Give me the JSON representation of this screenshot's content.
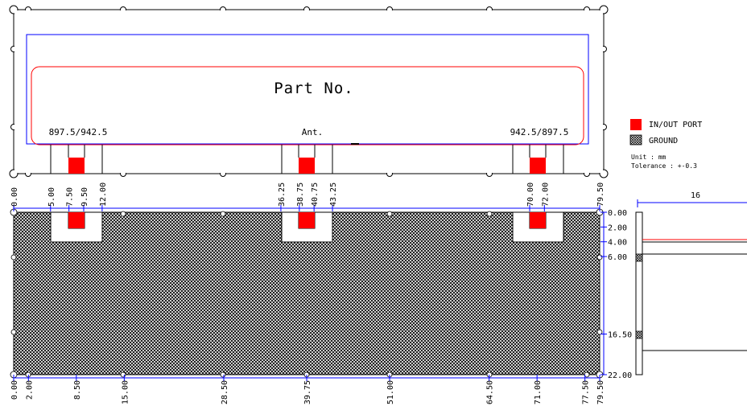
{
  "top_view": {
    "part_no": "Part No.",
    "left_label": "897.5/942.5",
    "center_label": "Ant.",
    "right_label": "942.5/897.5"
  },
  "legend": {
    "in_out_port": "IN/OUT PORT",
    "ground": "GROUND",
    "unit": "Unit : mm",
    "tolerance": "Tolerance : +-0.3",
    "colors": {
      "port": "#ff0000",
      "outline_blue": "#0000ff",
      "ground": "#000000"
    }
  },
  "bottom_view": {
    "top_dims": [
      "0.00",
      "5.00",
      "7.50",
      "9.50",
      "12.00",
      "36.25",
      "38.75",
      "40.75",
      "43.25",
      "70.00",
      "72.00",
      "79.50"
    ],
    "bottom_dims": [
      "0.00",
      "2.00",
      "8.50",
      "15.00",
      "28.50",
      "39.75",
      "51.00",
      "64.50",
      "71.00",
      "77.50",
      "79.50"
    ],
    "right_dims": [
      "0.00",
      "2.00",
      "4.00",
      "6.00",
      "16.50",
      "22.00"
    ]
  },
  "side_view": {
    "width_label": "16"
  }
}
